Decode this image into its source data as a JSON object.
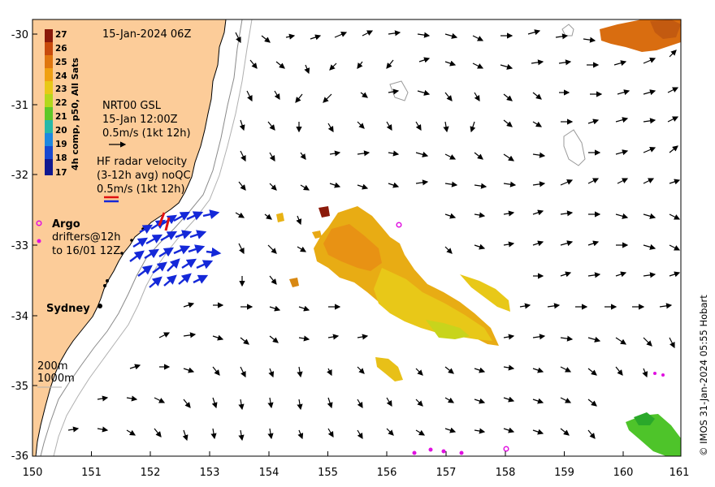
{
  "map": {
    "timestamp": "15-Jan-2024 06Z",
    "credit": "© IMOS 31-Jan-2024 05:55 Hobart",
    "x_ticks": [
      "150",
      "151",
      "152",
      "153",
      "154",
      "155",
      "156",
      "157",
      "158",
      "159",
      "160",
      "161"
    ],
    "y_ticks": [
      "-30",
      "-31",
      "-32",
      "-33",
      "-34",
      "-35",
      "-36"
    ],
    "colorbar": {
      "title": "4h comp, p50, All Sats",
      "labels": [
        "27",
        "26",
        "25",
        "24",
        "23",
        "22",
        "21",
        "20",
        "19",
        "18",
        "17"
      ],
      "colors": [
        "#8b1a0a",
        "#c84a0c",
        "#e0760f",
        "#f0a012",
        "#e8c818",
        "#b4d81c",
        "#5ec828",
        "#27b8a8",
        "#1e88e0",
        "#1848d0",
        "#101890"
      ]
    },
    "model": {
      "line1": "NRT00 GSL",
      "line2": "15-Jan 12:00Z",
      "line3": "0.5m/s (1kt 12h)"
    },
    "radar": {
      "line1": "HF radar velocity",
      "line2": "(3-12h avg) noQC",
      "line3": "0.5m/s (1kt 12h)"
    },
    "argo_label": "Argo",
    "drifters_line1": "drifters@12h",
    "drifters_line2": "to 16/01 12Z",
    "city": "Sydney",
    "contour_200": "200m",
    "contour_1000": "1000m"
  },
  "chart_data": {
    "type": "map",
    "x_range": [
      150,
      161
    ],
    "y_range": [
      -36,
      -30
    ],
    "x_label_units": "longitude",
    "y_label_units": "latitude",
    "sst_range": [
      17,
      27
    ]
  }
}
